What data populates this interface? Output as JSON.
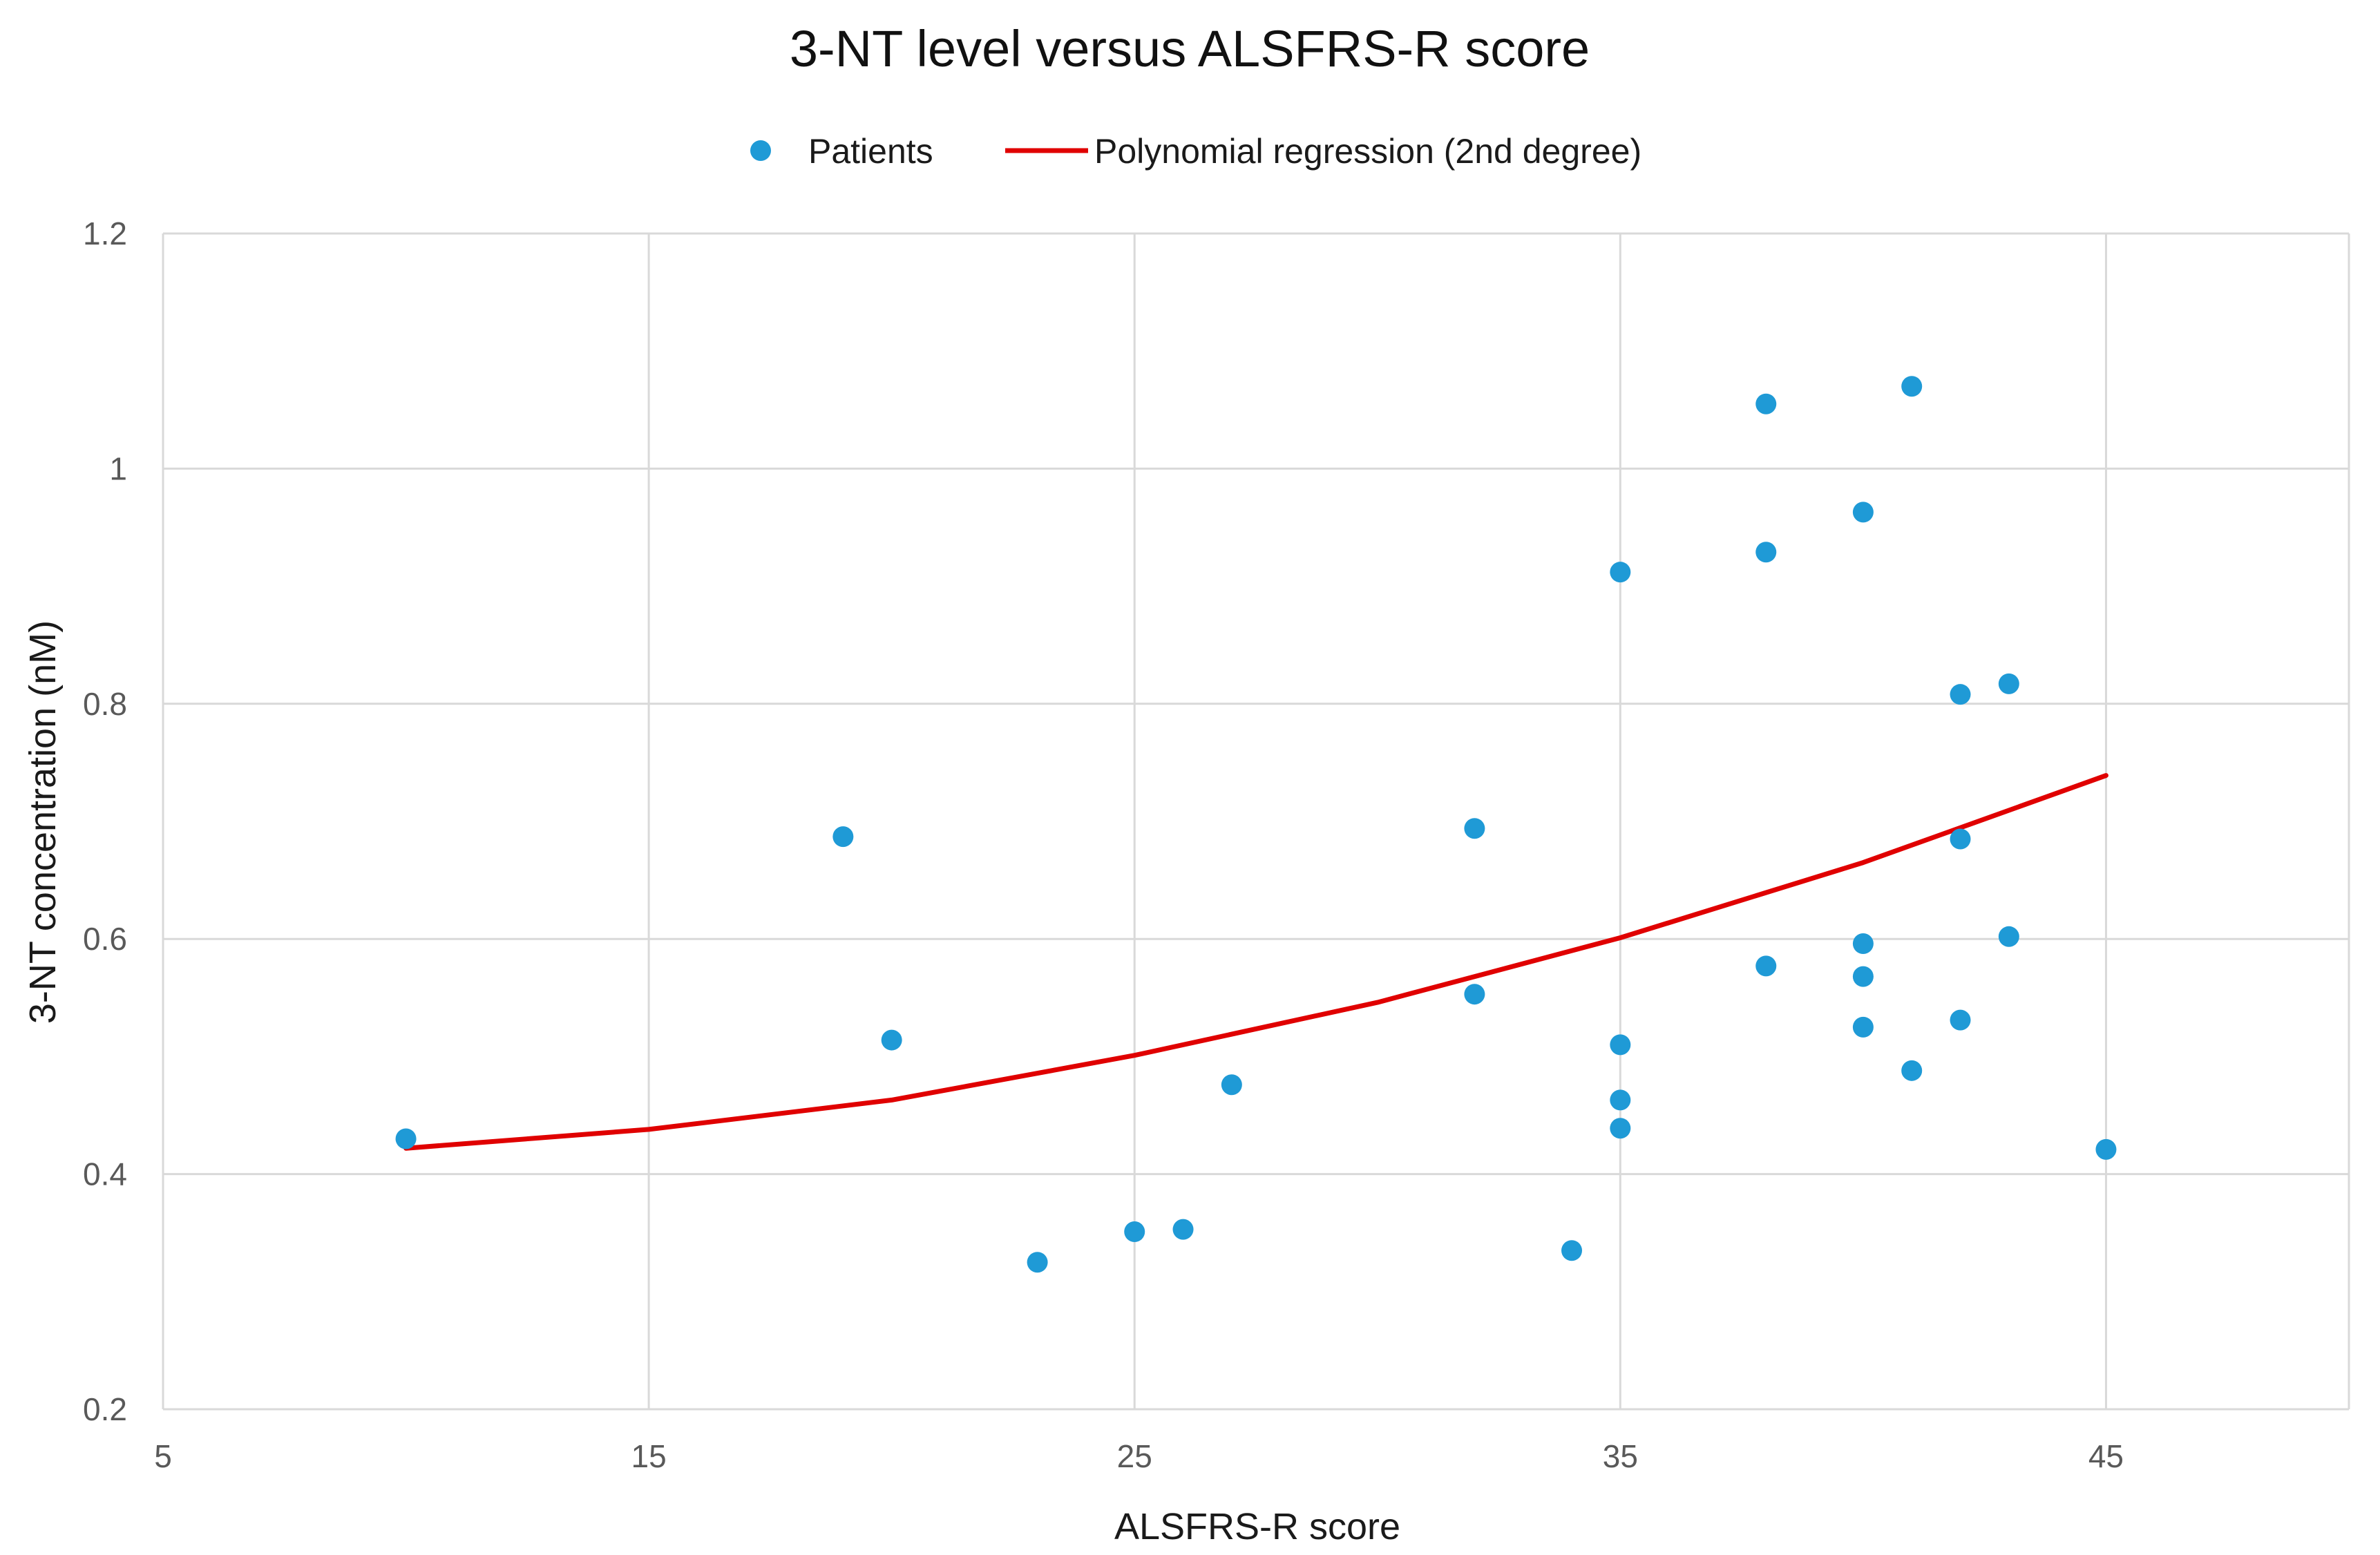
{
  "chart_data": {
    "type": "scatter",
    "title": "3-NT level versus ALSFRS-R score",
    "xlabel": "ALSFRS-R score",
    "ylabel": "3-NT concentration (nM)",
    "xlim": [
      5,
      50
    ],
    "ylim": [
      0.2,
      1.2
    ],
    "x_ticks": [
      5,
      15,
      25,
      35,
      45
    ],
    "y_ticks": [
      0.2,
      0.4,
      0.6,
      0.8,
      1,
      1.2
    ],
    "y_tick_labels": [
      "0.2",
      "0.4",
      "0.6",
      "0.8",
      "1",
      "1.2"
    ],
    "x_tick_labels": [
      "5",
      "15",
      "25",
      "35",
      "45"
    ],
    "grid": true,
    "legend_position": "top-center",
    "colors": {
      "points": "#1f9ad6",
      "regression": "#e00000",
      "grid": "#d9d9d9"
    },
    "series": [
      {
        "name": "Patients",
        "kind": "scatter",
        "points": [
          {
            "x": 10,
            "y": 0.43
          },
          {
            "x": 19,
            "y": 0.687
          },
          {
            "x": 20,
            "y": 0.514
          },
          {
            "x": 23,
            "y": 0.325
          },
          {
            "x": 25,
            "y": 0.351
          },
          {
            "x": 26,
            "y": 0.353
          },
          {
            "x": 27,
            "y": 0.476
          },
          {
            "x": 32,
            "y": 0.694
          },
          {
            "x": 32,
            "y": 0.553
          },
          {
            "x": 34,
            "y": 0.335
          },
          {
            "x": 35,
            "y": 0.912
          },
          {
            "x": 35,
            "y": 0.51
          },
          {
            "x": 35,
            "y": 0.463
          },
          {
            "x": 35,
            "y": 0.439
          },
          {
            "x": 38,
            "y": 1.055
          },
          {
            "x": 38,
            "y": 0.929
          },
          {
            "x": 38,
            "y": 0.577
          },
          {
            "x": 40,
            "y": 0.963
          },
          {
            "x": 40,
            "y": 0.596
          },
          {
            "x": 40,
            "y": 0.568
          },
          {
            "x": 40,
            "y": 0.525
          },
          {
            "x": 41,
            "y": 1.07
          },
          {
            "x": 41,
            "y": 0.488
          },
          {
            "x": 42,
            "y": 0.808
          },
          {
            "x": 42,
            "y": 0.685
          },
          {
            "x": 42,
            "y": 0.531
          },
          {
            "x": 43,
            "y": 0.817
          },
          {
            "x": 43,
            "y": 0.602
          },
          {
            "x": 45,
            "y": 0.421
          }
        ]
      },
      {
        "name": "Polynomial regression (2nd degree)",
        "kind": "line",
        "points": [
          {
            "x": 10,
            "y": 0.422
          },
          {
            "x": 15,
            "y": 0.438
          },
          {
            "x": 20,
            "y": 0.463
          },
          {
            "x": 25,
            "y": 0.501
          },
          {
            "x": 30,
            "y": 0.546
          },
          {
            "x": 35,
            "y": 0.601
          },
          {
            "x": 40,
            "y": 0.665
          },
          {
            "x": 45,
            "y": 0.739
          }
        ]
      }
    ]
  }
}
